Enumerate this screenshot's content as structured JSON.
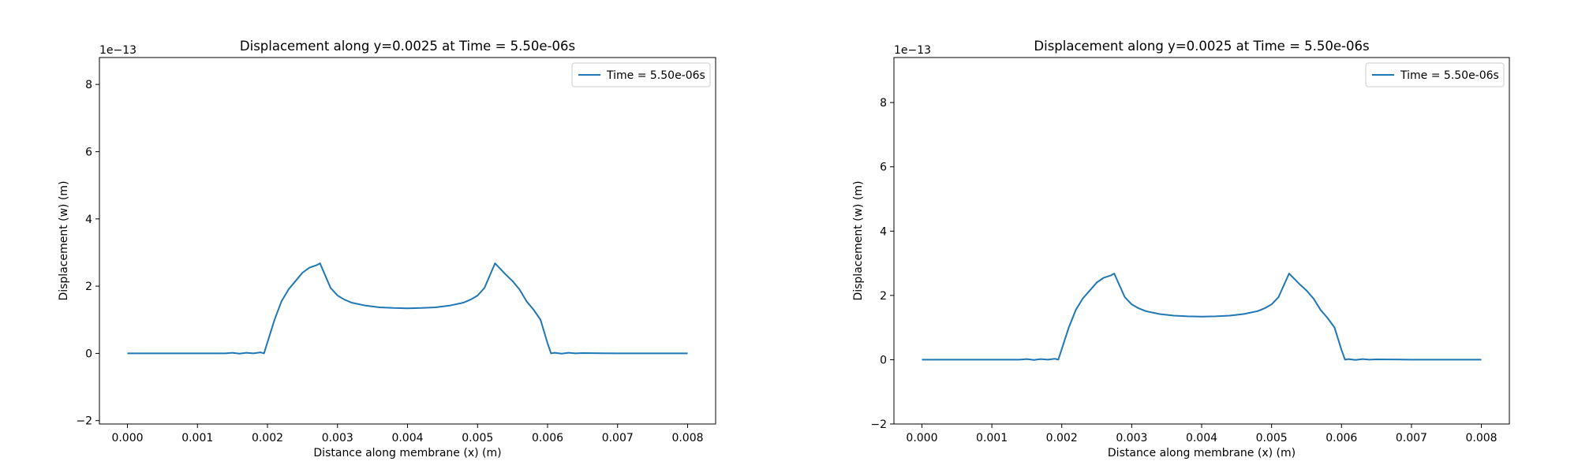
{
  "chart_data": [
    {
      "type": "line",
      "title": "Displacement along y=0.0025 at Time = 5.50e-06s",
      "xlabel": "Distance along membrane (x) (m)",
      "ylabel": "Displacement (w) (m)",
      "y_scale_label": "1e−13",
      "xlim": [
        -0.0004,
        0.0084
      ],
      "ylim": [
        -2.1,
        8.8
      ],
      "xticks": [
        0.0,
        0.001,
        0.002,
        0.003,
        0.004,
        0.005,
        0.006,
        0.007,
        0.008
      ],
      "xtick_labels": [
        "0.000",
        "0.001",
        "0.002",
        "0.003",
        "0.004",
        "0.005",
        "0.006",
        "0.007",
        "0.008"
      ],
      "yticks": [
        -2,
        0,
        2,
        4,
        6,
        8
      ],
      "ytick_labels": [
        "−2",
        "0",
        "2",
        "4",
        "6",
        "8"
      ],
      "grid": false,
      "legend": "top-right",
      "color": "#1f77b4",
      "series": [
        {
          "name": "Time = 5.50e-06s",
          "x": [
            0.0,
            0.0005,
            0.001,
            0.0014,
            0.0015,
            0.0016,
            0.0017,
            0.0018,
            0.0019,
            0.00195,
            0.0021,
            0.0022,
            0.0023,
            0.0024,
            0.0025,
            0.0026,
            0.0027,
            0.00275,
            0.0029,
            0.003,
            0.0031,
            0.0032,
            0.0034,
            0.0036,
            0.0038,
            0.004,
            0.0042,
            0.0044,
            0.0046,
            0.0048,
            0.0049,
            0.005,
            0.0051,
            0.00525,
            0.0054,
            0.0055,
            0.0056,
            0.0057,
            0.0058,
            0.0059,
            0.006,
            0.00605,
            0.0061,
            0.0062,
            0.0063,
            0.0064,
            0.0065,
            0.007,
            0.0075,
            0.008
          ],
          "y": [
            0.0,
            0.0,
            0.0,
            0.0,
            0.02,
            -0.01,
            0.02,
            0.0,
            0.03,
            0.0,
            1.0,
            1.55,
            1.9,
            2.15,
            2.4,
            2.55,
            2.62,
            2.68,
            1.95,
            1.72,
            1.6,
            1.51,
            1.42,
            1.37,
            1.35,
            1.34,
            1.35,
            1.37,
            1.42,
            1.51,
            1.6,
            1.72,
            1.95,
            2.68,
            2.35,
            2.15,
            1.9,
            1.55,
            1.3,
            1.0,
            0.3,
            0.0,
            0.02,
            -0.01,
            0.02,
            0.0,
            0.01,
            0.0,
            0.0,
            0.0
          ]
        }
      ]
    },
    {
      "type": "line",
      "title": "Displacement along y=0.0025 at Time = 5.50e-06s",
      "xlabel": "Distance along membrane (x) (m)",
      "ylabel": "Displacement (w) (m)",
      "y_scale_label": "1e−13",
      "xlim": [
        -0.0004,
        0.0084
      ],
      "ylim": [
        -2.0,
        9.4
      ],
      "xticks": [
        0.0,
        0.001,
        0.002,
        0.003,
        0.004,
        0.005,
        0.006,
        0.007,
        0.008
      ],
      "xtick_labels": [
        "0.000",
        "0.001",
        "0.002",
        "0.003",
        "0.004",
        "0.005",
        "0.006",
        "0.007",
        "0.008"
      ],
      "yticks": [
        -2,
        0,
        2,
        4,
        6,
        8
      ],
      "ytick_labels": [
        "−2",
        "0",
        "2",
        "4",
        "6",
        "8"
      ],
      "grid": false,
      "legend": "top-right",
      "color": "#1f77b4",
      "series": [
        {
          "name": "Time = 5.50e-06s",
          "x": [
            0.0,
            0.0005,
            0.001,
            0.0014,
            0.0015,
            0.0016,
            0.0017,
            0.0018,
            0.0019,
            0.00195,
            0.0021,
            0.0022,
            0.0023,
            0.0024,
            0.0025,
            0.0026,
            0.0027,
            0.00275,
            0.0029,
            0.003,
            0.0031,
            0.0032,
            0.0034,
            0.0036,
            0.0038,
            0.004,
            0.0042,
            0.0044,
            0.0046,
            0.0048,
            0.0049,
            0.005,
            0.0051,
            0.00525,
            0.0054,
            0.0055,
            0.0056,
            0.0057,
            0.0058,
            0.0059,
            0.006,
            0.00605,
            0.0061,
            0.0062,
            0.0063,
            0.0064,
            0.0065,
            0.007,
            0.0075,
            0.008
          ],
          "y": [
            0.0,
            0.0,
            0.0,
            0.0,
            0.02,
            -0.01,
            0.02,
            0.0,
            0.03,
            0.0,
            1.0,
            1.55,
            1.9,
            2.15,
            2.4,
            2.55,
            2.62,
            2.68,
            1.95,
            1.72,
            1.6,
            1.51,
            1.42,
            1.37,
            1.35,
            1.34,
            1.35,
            1.37,
            1.42,
            1.51,
            1.6,
            1.72,
            1.95,
            2.68,
            2.35,
            2.15,
            1.9,
            1.55,
            1.3,
            1.0,
            0.3,
            0.0,
            0.02,
            -0.01,
            0.02,
            0.0,
            0.01,
            0.0,
            0.0,
            0.0
          ]
        }
      ]
    }
  ]
}
